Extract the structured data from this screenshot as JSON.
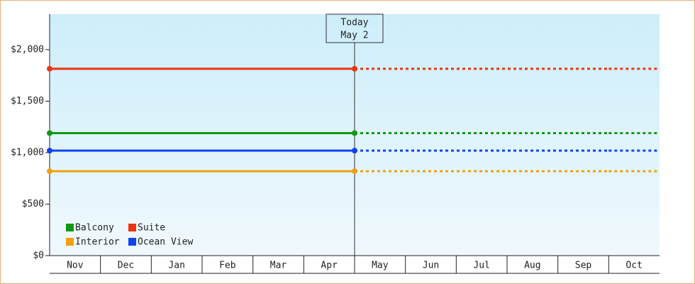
{
  "chart_data": {
    "type": "line",
    "categories": [
      "Nov",
      "Dec",
      "Jan",
      "Feb",
      "Mar",
      "Apr",
      "May",
      "Jun",
      "Jul",
      "Aug",
      "Sep",
      "Oct"
    ],
    "series": [
      {
        "name": "Balcony",
        "color": "#119911",
        "values": [
          1190,
          1190,
          1190,
          1190,
          1190,
          1190,
          1190,
          1190,
          1190,
          1190,
          1190,
          1190
        ]
      },
      {
        "name": "Suite",
        "color": "#ee3311",
        "values": [
          1815,
          1815,
          1815,
          1815,
          1815,
          1815,
          1815,
          1815,
          1815,
          1815,
          1815,
          1815
        ]
      },
      {
        "name": "Interior",
        "color": "#f0a010",
        "values": [
          820,
          820,
          820,
          820,
          820,
          820,
          820,
          820,
          820,
          820,
          820,
          820
        ]
      },
      {
        "name": "Ocean View",
        "color": "#1144ee",
        "values": [
          1020,
          1020,
          1020,
          1020,
          1020,
          1020,
          1020,
          1020,
          1020,
          1020,
          1020,
          1020
        ]
      }
    ],
    "ylim": [
      0,
      2345
    ],
    "yticks": [
      {
        "value": 0,
        "label": "$0"
      },
      {
        "value": 500,
        "label": "$500"
      },
      {
        "value": 1000,
        "label": "$1,000"
      },
      {
        "value": 1500,
        "label": "$1,500"
      },
      {
        "value": 2000,
        "label": "$2,000"
      }
    ],
    "today": {
      "label": "Today",
      "date": "May 2"
    },
    "legend": "lower left"
  }
}
